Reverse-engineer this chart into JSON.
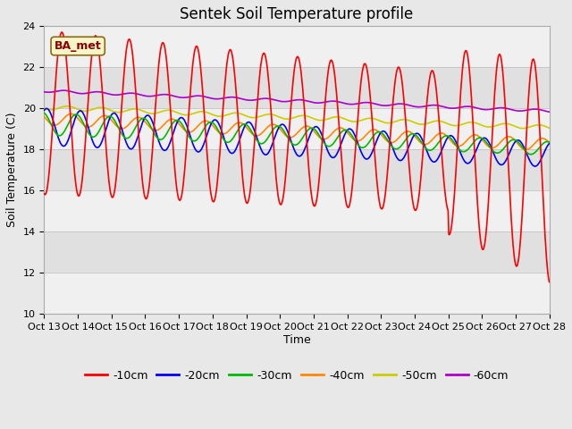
{
  "title": "Sentek Soil Temperature profile",
  "xlabel": "Time",
  "ylabel": "Soil Temperature (C)",
  "ylim": [
    10,
    24
  ],
  "yticks": [
    10,
    12,
    14,
    16,
    18,
    20,
    22,
    24
  ],
  "x_labels": [
    "Oct 13",
    "Oct 14",
    "Oct 15",
    "Oct 16",
    "Oct 17",
    "Oct 18",
    "Oct 19",
    "Oct 20",
    "Oct 21",
    "Oct 22",
    "Oct 23",
    "Oct 24",
    "Oct 25",
    "Oct 26",
    "Oct 27",
    "Oct 28"
  ],
  "annotation_text": "BA_met",
  "annotation_color": "#8B0000",
  "annotation_bg": "#f5f5c8",
  "series_colors": {
    "-10cm": "#ff0000",
    "-20cm": "#0000ff",
    "-30cm": "#00bb00",
    "-40cm": "#ff8800",
    "-50cm": "#cccc00",
    "-60cm": "#aa00cc"
  },
  "bg_color": "#e8e8e8",
  "plot_bg_color": "#e0e0e0",
  "grid_color_light": "#f5f5f5",
  "grid_color_dark": "#d8d8d8",
  "title_fontsize": 12,
  "label_fontsize": 9,
  "tick_fontsize": 8,
  "legend_fontsize": 9
}
